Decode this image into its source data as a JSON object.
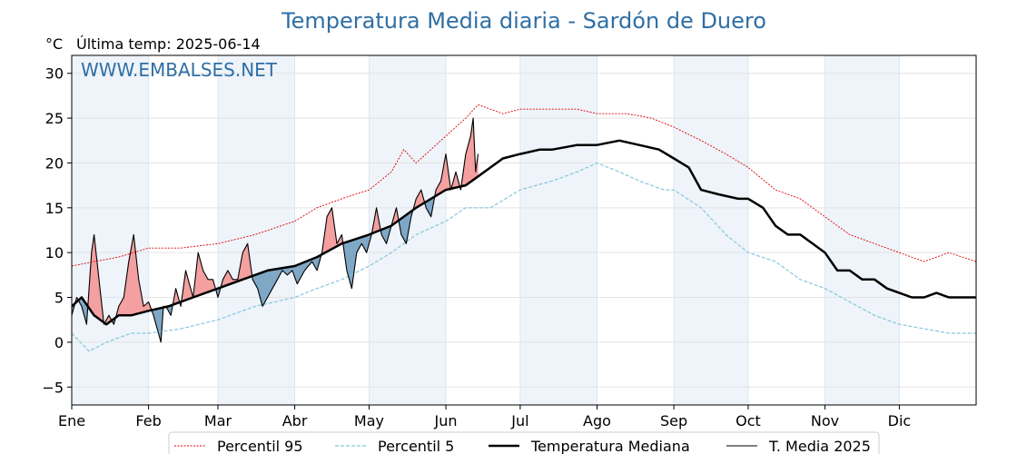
{
  "chart_data": {
    "type": "line",
    "title": "Temperatura Media diaria - Sardón de Duero",
    "unit": "°C",
    "subtitle": "Última temp: 2025-06-14",
    "watermark": "WWW.EMBALSES.NET",
    "ylim": [
      -7,
      32
    ],
    "yticks": [
      30,
      25,
      20,
      15,
      10,
      5,
      0,
      -5
    ],
    "ytick_labels": [
      "30",
      "25",
      "20",
      "15",
      "10",
      "5",
      "0",
      "−5"
    ],
    "xlim": [
      1,
      366
    ],
    "months": [
      {
        "label": "Ene",
        "start": 1
      },
      {
        "label": "Feb",
        "start": 32
      },
      {
        "label": "Mar",
        "start": 60
      },
      {
        "label": "Abr",
        "start": 91
      },
      {
        "label": "May",
        "start": 121
      },
      {
        "label": "Jun",
        "start": 152
      },
      {
        "label": "Jul",
        "start": 182
      },
      {
        "label": "Ago",
        "start": 213
      },
      {
        "label": "Sep",
        "start": 244
      },
      {
        "label": "Oct",
        "start": 274
      },
      {
        "label": "Nov",
        "start": 305
      },
      {
        "label": "Dic",
        "start": 335
      }
    ],
    "colors": {
      "p95": "#e00000",
      "p5": "#88c6dc",
      "median": "#000000",
      "current": "#000000",
      "above_fill": "#f4a0a0",
      "below_fill": "#7fa7c6",
      "band": "#eef4fa",
      "title": "#2f6fa5"
    },
    "legend": {
      "placement": "bottom",
      "items": [
        {
          "key": "p95",
          "label": "Percentil 95"
        },
        {
          "key": "p5",
          "label": "Percentil 5"
        },
        {
          "key": "median",
          "label": "Temperatura Mediana"
        },
        {
          "key": "current",
          "label": "T. Media 2025"
        }
      ]
    },
    "series": [
      {
        "name": "Percentil 95",
        "key": "p95",
        "points": [
          [
            1,
            8.5
          ],
          [
            10,
            9
          ],
          [
            20,
            9.5
          ],
          [
            32,
            10.5
          ],
          [
            45,
            10.5
          ],
          [
            60,
            11
          ],
          [
            75,
            12
          ],
          [
            91,
            13.5
          ],
          [
            100,
            15
          ],
          [
            110,
            16
          ],
          [
            121,
            17
          ],
          [
            130,
            19
          ],
          [
            135,
            21.5
          ],
          [
            140,
            20
          ],
          [
            152,
            23
          ],
          [
            160,
            25
          ],
          [
            165,
            26.5
          ],
          [
            175,
            25.5
          ],
          [
            182,
            26
          ],
          [
            195,
            26
          ],
          [
            205,
            26
          ],
          [
            213,
            25.5
          ],
          [
            225,
            25.5
          ],
          [
            235,
            25
          ],
          [
            244,
            24
          ],
          [
            255,
            22.5
          ],
          [
            265,
            21
          ],
          [
            274,
            19.5
          ],
          [
            285,
            17
          ],
          [
            295,
            16
          ],
          [
            305,
            14
          ],
          [
            315,
            12
          ],
          [
            325,
            11
          ],
          [
            335,
            10
          ],
          [
            345,
            9
          ],
          [
            355,
            10
          ],
          [
            366,
            9
          ]
        ]
      },
      {
        "name": "Percentil 5",
        "key": "p5",
        "points": [
          [
            1,
            1
          ],
          [
            8,
            -1
          ],
          [
            15,
            0
          ],
          [
            25,
            1
          ],
          [
            32,
            1
          ],
          [
            45,
            1.5
          ],
          [
            60,
            2.5
          ],
          [
            75,
            4
          ],
          [
            91,
            5
          ],
          [
            100,
            6
          ],
          [
            110,
            7
          ],
          [
            121,
            8.5
          ],
          [
            130,
            10
          ],
          [
            140,
            12
          ],
          [
            152,
            13.5
          ],
          [
            160,
            15
          ],
          [
            170,
            15
          ],
          [
            182,
            17
          ],
          [
            195,
            18
          ],
          [
            205,
            19
          ],
          [
            213,
            20
          ],
          [
            222,
            19
          ],
          [
            230,
            18
          ],
          [
            240,
            17
          ],
          [
            244,
            17
          ],
          [
            255,
            15
          ],
          [
            265,
            12
          ],
          [
            274,
            10
          ],
          [
            285,
            9
          ],
          [
            295,
            7
          ],
          [
            305,
            6
          ],
          [
            315,
            4.5
          ],
          [
            325,
            3
          ],
          [
            335,
            2
          ],
          [
            345,
            1.5
          ],
          [
            355,
            1
          ],
          [
            366,
            1
          ]
        ]
      },
      {
        "name": "Temperatura Mediana",
        "key": "median",
        "points": [
          [
            1,
            4
          ],
          [
            5,
            5
          ],
          [
            10,
            3
          ],
          [
            15,
            2
          ],
          [
            20,
            3
          ],
          [
            25,
            3
          ],
          [
            32,
            3.5
          ],
          [
            40,
            4
          ],
          [
            50,
            5
          ],
          [
            60,
            6
          ],
          [
            70,
            7
          ],
          [
            80,
            8
          ],
          [
            91,
            8.5
          ],
          [
            100,
            9.5
          ],
          [
            110,
            11
          ],
          [
            121,
            12
          ],
          [
            130,
            13
          ],
          [
            140,
            15
          ],
          [
            152,
            17
          ],
          [
            160,
            17.5
          ],
          [
            165,
            18.5
          ],
          [
            170,
            19.5
          ],
          [
            175,
            20.5
          ],
          [
            182,
            21
          ],
          [
            190,
            21.5
          ],
          [
            195,
            21.5
          ],
          [
            205,
            22
          ],
          [
            213,
            22
          ],
          [
            222,
            22.5
          ],
          [
            230,
            22
          ],
          [
            238,
            21.5
          ],
          [
            244,
            20.5
          ],
          [
            250,
            19.5
          ],
          [
            255,
            17
          ],
          [
            262,
            16.5
          ],
          [
            270,
            16
          ],
          [
            274,
            16
          ],
          [
            280,
            15
          ],
          [
            285,
            13
          ],
          [
            290,
            12
          ],
          [
            295,
            12
          ],
          [
            300,
            11
          ],
          [
            305,
            10
          ],
          [
            310,
            8
          ],
          [
            315,
            8
          ],
          [
            320,
            7
          ],
          [
            325,
            7
          ],
          [
            330,
            6
          ],
          [
            335,
            5.5
          ],
          [
            340,
            5
          ],
          [
            345,
            5
          ],
          [
            350,
            5.5
          ],
          [
            355,
            5
          ],
          [
            360,
            5
          ],
          [
            366,
            5
          ]
        ]
      },
      {
        "name": "T. Media 2025",
        "key": "current",
        "points": [
          [
            1,
            3
          ],
          [
            3,
            5
          ],
          [
            5,
            4
          ],
          [
            7,
            2
          ],
          [
            9,
            10
          ],
          [
            10,
            12
          ],
          [
            12,
            7
          ],
          [
            14,
            2
          ],
          [
            16,
            3
          ],
          [
            18,
            2
          ],
          [
            20,
            4
          ],
          [
            22,
            5
          ],
          [
            24,
            9
          ],
          [
            26,
            12
          ],
          [
            28,
            7
          ],
          [
            30,
            4
          ],
          [
            32,
            4.5
          ],
          [
            34,
            3
          ],
          [
            36,
            1
          ],
          [
            37,
            0
          ],
          [
            38,
            4
          ],
          [
            39,
            4
          ],
          [
            41,
            3
          ],
          [
            43,
            6
          ],
          [
            45,
            4
          ],
          [
            47,
            8
          ],
          [
            50,
            5
          ],
          [
            52,
            10
          ],
          [
            54,
            8
          ],
          [
            56,
            7
          ],
          [
            58,
            7
          ],
          [
            60,
            5
          ],
          [
            62,
            7
          ],
          [
            64,
            8
          ],
          [
            66,
            7
          ],
          [
            68,
            7
          ],
          [
            70,
            10
          ],
          [
            72,
            11
          ],
          [
            74,
            7
          ],
          [
            76,
            6
          ],
          [
            78,
            4
          ],
          [
            80,
            5
          ],
          [
            82,
            6
          ],
          [
            84,
            7
          ],
          [
            86,
            8
          ],
          [
            88,
            7.5
          ],
          [
            90,
            8
          ],
          [
            92,
            6.5
          ],
          [
            95,
            8
          ],
          [
            98,
            9
          ],
          [
            100,
            8
          ],
          [
            102,
            10
          ],
          [
            104,
            14
          ],
          [
            106,
            15
          ],
          [
            108,
            11
          ],
          [
            110,
            12
          ],
          [
            112,
            8
          ],
          [
            114,
            6
          ],
          [
            116,
            10
          ],
          [
            118,
            11
          ],
          [
            120,
            10
          ],
          [
            122,
            12
          ],
          [
            124,
            15
          ],
          [
            126,
            12
          ],
          [
            128,
            11
          ],
          [
            130,
            13
          ],
          [
            132,
            15
          ],
          [
            134,
            12
          ],
          [
            136,
            11
          ],
          [
            138,
            14
          ],
          [
            140,
            16
          ],
          [
            142,
            17
          ],
          [
            144,
            15
          ],
          [
            146,
            14
          ],
          [
            148,
            17
          ],
          [
            150,
            18
          ],
          [
            152,
            21
          ],
          [
            154,
            17
          ],
          [
            156,
            19
          ],
          [
            158,
            17
          ],
          [
            160,
            21
          ],
          [
            162,
            23
          ],
          [
            163,
            25
          ],
          [
            164,
            19
          ],
          [
            165,
            21
          ]
        ]
      }
    ]
  }
}
